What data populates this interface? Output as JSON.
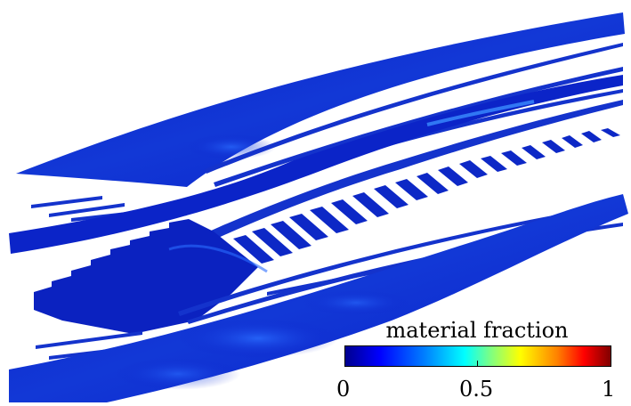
{
  "colorbar": {
    "title": "material fraction",
    "ticks": [
      "0",
      "0.5",
      "1"
    ],
    "range": [
      0,
      1
    ],
    "colormap": "jet",
    "colors": [
      "#00008f",
      "#0000ff",
      "#00ffff",
      "#ffff00",
      "#ff0000",
      "#800000"
    ]
  },
  "scene": {
    "subject": "3D rendering of blade-like lattice structure colored by material fraction",
    "dominant_color": "#0a1fc8",
    "highlight_color": "#2a78ff",
    "background": "#ffffff"
  }
}
